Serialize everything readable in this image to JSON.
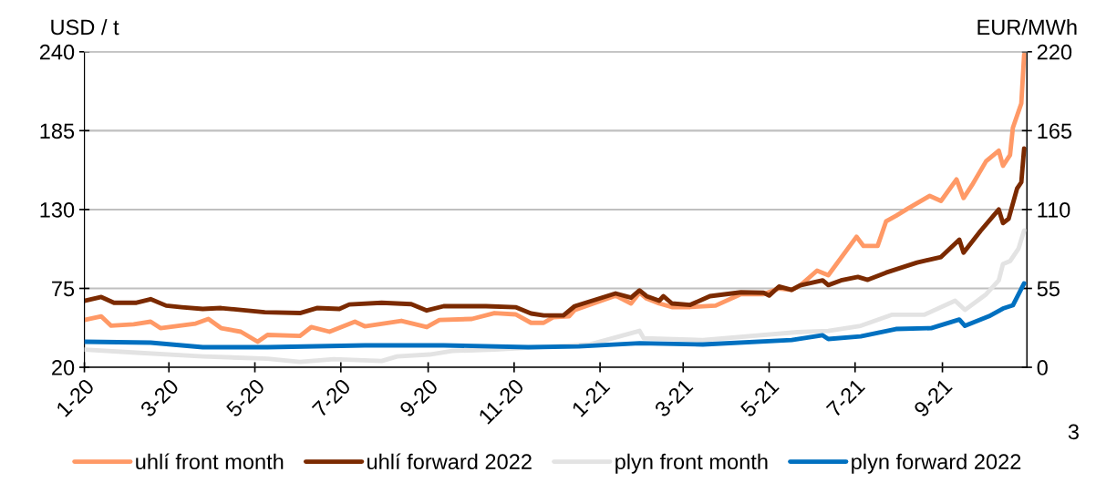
{
  "chart_data": {
    "type": "line",
    "ylabel": "USD / t",
    "y2label": "EUR/MWh",
    "xlim": [
      "2020-01-01",
      "2021-10-31"
    ],
    "xticks": [
      {
        "value": "2020-01-01",
        "label": "1-20"
      },
      {
        "value": "2020-03-01",
        "label": "3-20"
      },
      {
        "value": "2020-05-01",
        "label": "5-20"
      },
      {
        "value": "2020-07-01",
        "label": "7-20"
      },
      {
        "value": "2020-09-01",
        "label": "9-20"
      },
      {
        "value": "2020-11-01",
        "label": "11-20"
      },
      {
        "value": "2021-01-01",
        "label": "1-21"
      },
      {
        "value": "2021-03-01",
        "label": "3-21"
      },
      {
        "value": "2021-05-01",
        "label": "5-21"
      },
      {
        "value": "2021-07-01",
        "label": "7-21"
      },
      {
        "value": "2021-09-01",
        "label": "9-21"
      }
    ],
    "ylim": [
      20,
      240
    ],
    "yticks": [
      20,
      75,
      130,
      185,
      240
    ],
    "y2lim": [
      0,
      220
    ],
    "y2ticks": [
      0,
      55,
      110,
      165,
      220
    ],
    "grid": "y",
    "legend": "bottom",
    "line_style": "solid",
    "marker": "none",
    "annotations": [
      "3"
    ],
    "series": [
      {
        "name": "uhlí front month",
        "color": "#ff9966",
        "x": [
          "2020-01-01",
          "2020-01-13",
          "2020-01-20",
          "2020-02-05",
          "2020-02-17",
          "2020-02-24",
          "2020-03-20",
          "2020-03-29",
          "2020-04-07",
          "2020-04-21",
          "2020-05-03",
          "2020-05-10",
          "2020-06-02",
          "2020-06-10",
          "2020-06-23",
          "2020-07-11",
          "2020-07-18",
          "2020-08-13",
          "2020-08-31",
          "2020-09-09",
          "2020-10-02",
          "2020-10-18",
          "2020-11-02",
          "2020-11-13",
          "2020-11-22",
          "2020-11-29",
          "2020-12-10",
          "2020-12-14",
          "2021-01-12",
          "2021-01-23",
          "2021-01-29",
          "2021-02-03",
          "2021-02-12",
          "2021-02-21",
          "2021-03-06",
          "2021-03-24",
          "2021-04-11",
          "2021-04-27",
          "2021-05-08",
          "2021-05-17",
          "2021-05-23",
          "2021-06-04",
          "2021-06-12",
          "2021-07-02",
          "2021-07-07",
          "2021-07-17",
          "2021-07-23",
          "2021-07-30",
          "2021-08-08",
          "2021-08-23",
          "2021-08-31",
          "2021-09-11",
          "2021-09-16",
          "2021-09-22",
          "2021-10-02",
          "2021-10-11",
          "2021-10-14",
          "2021-10-19",
          "2021-10-21",
          "2021-10-27",
          "2021-10-29"
        ],
        "values": [
          53,
          55.5,
          49,
          50,
          51.8,
          47.3,
          50.5,
          53.7,
          47.3,
          44.8,
          37.8,
          42.6,
          41.9,
          48,
          44.8,
          51.8,
          48.6,
          52.4,
          48,
          53,
          53.7,
          57.8,
          56.9,
          51,
          51,
          55,
          55.6,
          60,
          70,
          64.5,
          72,
          68,
          64.5,
          62,
          62,
          63,
          71,
          71,
          75,
          74,
          77,
          87.4,
          84.2,
          111,
          104.6,
          104.6,
          121.7,
          125.6,
          131,
          139.5,
          136,
          151,
          138,
          147,
          163.7,
          171,
          160.5,
          168,
          187,
          204,
          238
        ]
      },
      {
        "name": "uhlí forward 2022",
        "color": "#7b2a00",
        "x": [
          "2020-01-01",
          "2020-01-13",
          "2020-01-22",
          "2020-02-07",
          "2020-02-17",
          "2020-02-28",
          "2020-03-10",
          "2020-03-25",
          "2020-04-07",
          "2020-05-08",
          "2020-06-02",
          "2020-06-14",
          "2020-06-30",
          "2020-07-07",
          "2020-07-30",
          "2020-08-20",
          "2020-08-31",
          "2020-09-12",
          "2020-10-12",
          "2020-11-02",
          "2020-11-13",
          "2020-11-22",
          "2020-12-06",
          "2020-12-14",
          "2021-01-12",
          "2021-01-23",
          "2021-01-29",
          "2021-02-03",
          "2021-02-12",
          "2021-02-15",
          "2021-02-21",
          "2021-03-06",
          "2021-03-20",
          "2021-04-11",
          "2021-04-27",
          "2021-05-01",
          "2021-05-08",
          "2021-05-17",
          "2021-05-23",
          "2021-06-08",
          "2021-06-12",
          "2021-06-21",
          "2021-07-03",
          "2021-07-10",
          "2021-07-23",
          "2021-08-14",
          "2021-08-31",
          "2021-09-13",
          "2021-09-16",
          "2021-09-28",
          "2021-10-11",
          "2021-10-14",
          "2021-10-18",
          "2021-10-24",
          "2021-10-27",
          "2021-10-29"
        ],
        "values": [
          66.4,
          69,
          65,
          65,
          67.5,
          63,
          61.9,
          60.7,
          61.3,
          58.4,
          57.8,
          61.3,
          60.7,
          63.8,
          65,
          64,
          59.6,
          62.6,
          62.6,
          61.9,
          57.5,
          56.2,
          56.2,
          62.6,
          71.5,
          68.6,
          73.6,
          69.6,
          66.4,
          69.6,
          64.5,
          63.5,
          69.6,
          72.3,
          72,
          70,
          76.3,
          74,
          77.2,
          80.6,
          77.3,
          80.6,
          83,
          81,
          86,
          93,
          96.9,
          109,
          100,
          115,
          130,
          120.5,
          123.6,
          144.6,
          149,
          172.6
        ]
      },
      {
        "name": "plyn front month",
        "color": "#e3e3e3",
        "axis": "y2",
        "x": [
          "2020-01-01",
          "2020-02-07",
          "2020-03-25",
          "2020-05-10",
          "2020-06-02",
          "2020-06-26",
          "2020-07-30",
          "2020-08-10",
          "2020-09-02",
          "2020-09-18",
          "2020-10-18",
          "2020-12-25",
          "2021-01-29",
          "2021-02-01",
          "2021-03-15",
          "2021-05-21",
          "2021-06-12",
          "2021-07-05",
          "2021-07-27",
          "2021-08-19",
          "2021-09-10",
          "2021-09-17",
          "2021-10-02",
          "2021-10-11",
          "2021-10-14",
          "2021-10-19",
          "2021-10-25",
          "2021-10-29"
        ],
        "values": [
          12.3,
          10.2,
          7.6,
          6,
          3.8,
          5.7,
          4.4,
          7.6,
          8.9,
          11.4,
          12.3,
          16,
          25.4,
          20.3,
          19,
          24.5,
          25.4,
          28.9,
          36.6,
          36.6,
          46.4,
          40,
          50.9,
          60.6,
          72,
          74,
          82.7,
          95.4
        ]
      },
      {
        "name": "plyn forward 2022",
        "color": "#0070c0",
        "axis": "y2",
        "x": [
          "2020-01-01",
          "2020-02-17",
          "2020-03-25",
          "2020-05-10",
          "2020-07-18",
          "2020-09-12",
          "2020-11-11",
          "2020-12-17",
          "2021-01-29",
          "2021-03-15",
          "2021-05-17",
          "2021-06-08",
          "2021-06-12",
          "2021-07-05",
          "2021-07-30",
          "2021-08-24",
          "2021-09-13",
          "2021-09-17",
          "2021-10-04",
          "2021-10-14",
          "2021-10-21",
          "2021-10-29"
        ],
        "values": [
          17.8,
          17.2,
          14,
          14,
          15.3,
          15.3,
          14,
          14.6,
          16.8,
          15.9,
          19,
          22.3,
          19.7,
          21.6,
          26.7,
          27.3,
          33.3,
          28.9,
          35.6,
          41,
          43.2,
          58.5
        ]
      }
    ]
  }
}
